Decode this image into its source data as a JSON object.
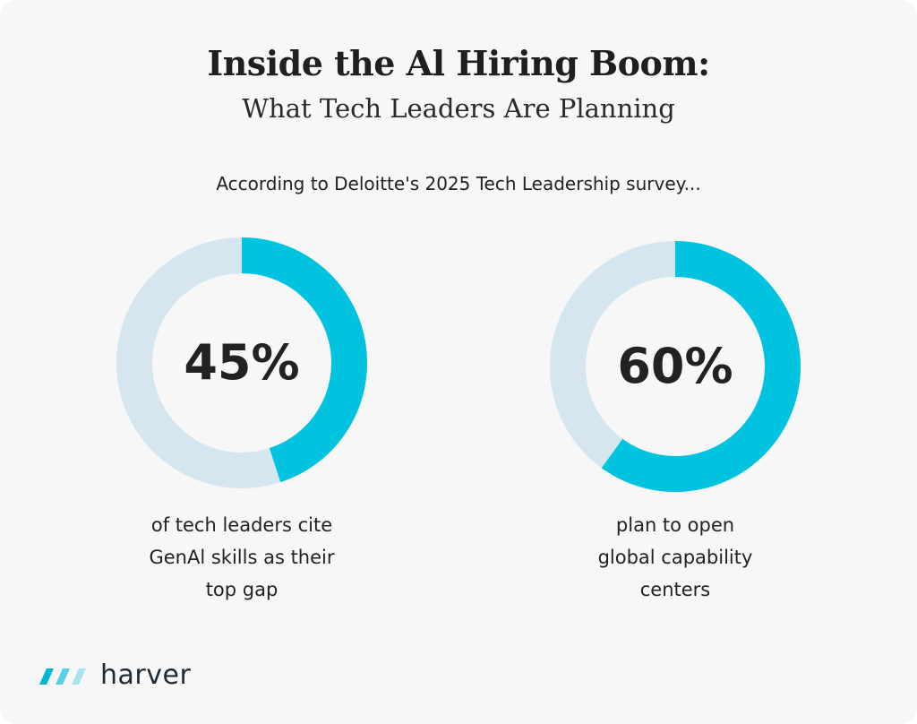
{
  "header": {
    "title": "Inside the Al Hiring Boom:",
    "subtitle": "What Tech Leaders Are Planning",
    "source": "According to Deloitte's 2025 Tech Leadership survey..."
  },
  "colors": {
    "accent": "#00c3e0",
    "track": "#d5e6f0",
    "background": "#f7f7f7",
    "text": "#222222"
  },
  "chart_data": [
    {
      "type": "pie",
      "value": 45,
      "unit": "%",
      "label": "45%",
      "caption": [
        "of tech leaders cite",
        "GenAl skills as their",
        "top gap"
      ]
    },
    {
      "type": "pie",
      "value": 60,
      "unit": "%",
      "label": "60%",
      "caption": [
        "plan to open",
        "global capability",
        "centers"
      ]
    }
  ],
  "logo": {
    "text": "harver",
    "icon": "harver-stripes-logo-icon"
  }
}
